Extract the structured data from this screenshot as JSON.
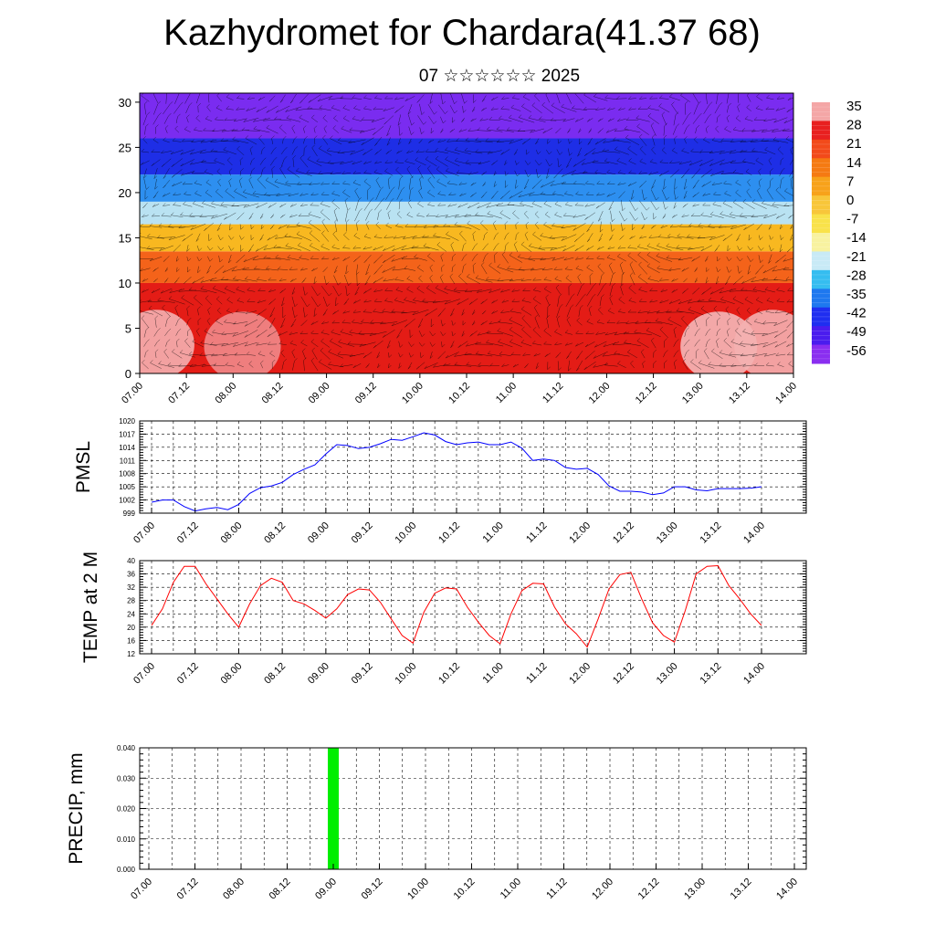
{
  "header": {
    "title": "Kazhydromet for Chardara(41.37 68)",
    "subtitle": "07 ☆☆☆☆☆☆ 2025"
  },
  "chart_data": [
    {
      "type": "heatmap",
      "title": "",
      "xlabel": "",
      "ylabel": "",
      "x_ticks": [
        "07.00",
        "07.12",
        "08.00",
        "08.12",
        "09.00",
        "09.12",
        "10.00",
        "10.12",
        "11.00",
        "11.12",
        "12.00",
        "12.12",
        "13.00",
        "13.12",
        "14.00"
      ],
      "y_ticks": [
        0,
        5,
        10,
        15,
        20,
        25,
        30
      ],
      "ylim": [
        0,
        31
      ],
      "colorbar_labels": [
        "35",
        "28",
        "21",
        "14",
        "7",
        "0",
        "-7",
        "-14",
        "-21",
        "-28",
        "-35",
        "-42",
        "-49",
        "-56"
      ],
      "colorbar_colors": [
        "#f4a6a6",
        "#e82020",
        "#f24a1a",
        "#f57a12",
        "#f7a21a",
        "#f8c63a",
        "#f9e24a",
        "#f8f2a0",
        "#c8eaf6",
        "#35bdf0",
        "#1e78ef",
        "#1f2ef0",
        "#4a1cee",
        "#8a2ef0"
      ],
      "layers": [
        {
          "z_from": 0,
          "z_to": 10,
          "color": "#e41c16"
        },
        {
          "z_from": 10,
          "z_to": 13.5,
          "color": "#f4631a"
        },
        {
          "z_from": 13.5,
          "z_to": 16.5,
          "color": "#f8b820"
        },
        {
          "z_from": 16.5,
          "z_to": 19,
          "color": "#b9e2f2"
        },
        {
          "z_from": 19,
          "z_to": 22,
          "color": "#2d8ff0"
        },
        {
          "z_from": 22,
          "z_to": 26,
          "color": "#1e2ee6"
        },
        {
          "z_from": 26,
          "z_to": 31,
          "color": "#7a2cf0"
        }
      ],
      "warm_spots": [
        {
          "x": 0.35,
          "z": 3.2,
          "color": "#f4b0b0"
        },
        {
          "x": 2.2,
          "z": 3.0,
          "color": "#f08a8a"
        },
        {
          "x": 12.4,
          "z": 3.0,
          "color": "#f4b8b8"
        },
        {
          "x": 13.55,
          "z": 3.2,
          "color": "#f4b0b0"
        }
      ],
      "vectors": "wind barbs overlay"
    },
    {
      "type": "line",
      "ylabel": "PMSL",
      "x_ticks": [
        "07.00",
        "07.12",
        "08.00",
        "08.12",
        "09.00",
        "09.12",
        "10.00",
        "10.12",
        "11.00",
        "11.12",
        "12.00",
        "12.12",
        "13.00",
        "13.12",
        "14.00"
      ],
      "y_ticks": [
        "999",
        "1002",
        "1005",
        "1008",
        "1011",
        "1014",
        "1017",
        "1020"
      ],
      "ylim": [
        999,
        1020
      ],
      "grid": true,
      "series": [
        {
          "color": "#0000ff",
          "x": [
            0,
            0.25,
            0.5,
            0.75,
            1,
            1.25,
            1.5,
            1.75,
            2,
            2.25,
            2.5,
            2.75,
            3,
            3.25,
            3.5,
            3.75,
            4,
            4.25,
            4.5,
            4.75,
            5,
            5.25,
            5.5,
            5.75,
            6,
            6.25,
            6.5,
            6.75,
            7,
            7.25,
            7.5,
            7.75,
            8,
            8.25,
            8.5,
            8.75,
            9,
            9.25,
            9.5,
            9.75,
            10,
            10.25,
            10.5,
            10.75,
            11,
            11.25,
            11.5,
            11.75,
            12,
            12.25,
            12.5,
            12.75,
            13,
            13.25,
            13.5,
            13.75,
            14
          ],
          "values": [
            1001.5,
            1002,
            1002,
            1000.5,
            999.5,
            1000,
            1000.3,
            999.8,
            1001,
            1003.5,
            1004.8,
            1005.2,
            1006,
            1007.8,
            1009,
            1010,
            1012.5,
            1014.6,
            1014.4,
            1013.7,
            1014,
            1014.8,
            1015.8,
            1015.6,
            1016.4,
            1017.3,
            1016.8,
            1015.3,
            1014.6,
            1015,
            1015.2,
            1014.6,
            1014.6,
            1015.2,
            1013.8,
            1011,
            1011.3,
            1011,
            1009.4,
            1009,
            1009.2,
            1007.8,
            1005.2,
            1004,
            1004,
            1003.8,
            1003.2,
            1003.6,
            1005,
            1005,
            1004.3,
            1004.1,
            1004.6,
            1004.6,
            1004.6,
            1004.7,
            1005
          ]
        }
      ]
    },
    {
      "type": "line",
      "ylabel": "TEMP at 2 M",
      "x_ticks": [
        "07.00",
        "07.12",
        "08.00",
        "08.12",
        "09.00",
        "09.12",
        "10.00",
        "10.12",
        "11.00",
        "11.12",
        "12.00",
        "12.12",
        "13.00",
        "13.12",
        "14.00"
      ],
      "y_ticks": [
        "12",
        "16",
        "20",
        "24",
        "28",
        "32",
        "36",
        "40"
      ],
      "ylim": [
        12,
        40
      ],
      "grid": true,
      "series": [
        {
          "color": "#ff0000",
          "x": [
            0,
            0.25,
            0.5,
            0.75,
            1,
            1.25,
            1.5,
            1.75,
            2,
            2.25,
            2.5,
            2.75,
            3,
            3.25,
            3.5,
            3.75,
            4,
            4.25,
            4.5,
            4.75,
            5,
            5.25,
            5.5,
            5.75,
            6,
            6.25,
            6.5,
            6.75,
            7,
            7.25,
            7.5,
            7.75,
            8,
            8.25,
            8.5,
            8.75,
            9,
            9.25,
            9.5,
            9.75,
            10,
            10.25,
            10.5,
            10.75,
            11,
            11.25,
            11.5,
            11.75,
            12,
            12.25,
            12.5,
            12.75,
            13,
            13.25,
            13.5,
            13.75,
            14
          ],
          "values": [
            20.5,
            25.5,
            33.5,
            38.3,
            38.3,
            33,
            28.5,
            24,
            20,
            27,
            32.5,
            34.7,
            33.5,
            28,
            27,
            25,
            22.7,
            25.5,
            29.8,
            31.5,
            31.2,
            27.5,
            22.5,
            17.5,
            15.2,
            24.5,
            30.2,
            31.8,
            31.5,
            26,
            21.5,
            17.5,
            15,
            24,
            31,
            33.2,
            33,
            26,
            21,
            18,
            14,
            22.5,
            31.5,
            35.8,
            36.5,
            28.5,
            21.3,
            17.5,
            15.5,
            25,
            36,
            38.3,
            38.5,
            32.5,
            28.5,
            24,
            20.5
          ]
        }
      ]
    },
    {
      "type": "bar",
      "ylabel": "PRECIP, mm",
      "x_ticks": [
        "07.00",
        "07.12",
        "08.00",
        "08.12",
        "09.00",
        "09.12",
        "10.00",
        "10.12",
        "11.00",
        "11.12",
        "12.00",
        "12.12",
        "13.00",
        "13.12",
        "14.00"
      ],
      "y_ticks": [
        "0.000",
        "0.010",
        "0.020",
        "0.030",
        "0.040"
      ],
      "ylim": [
        0,
        0.04
      ],
      "grid": true,
      "bars": [
        {
          "x": 4.0,
          "value": 0.04,
          "color": "#00ee00"
        }
      ]
    }
  ]
}
